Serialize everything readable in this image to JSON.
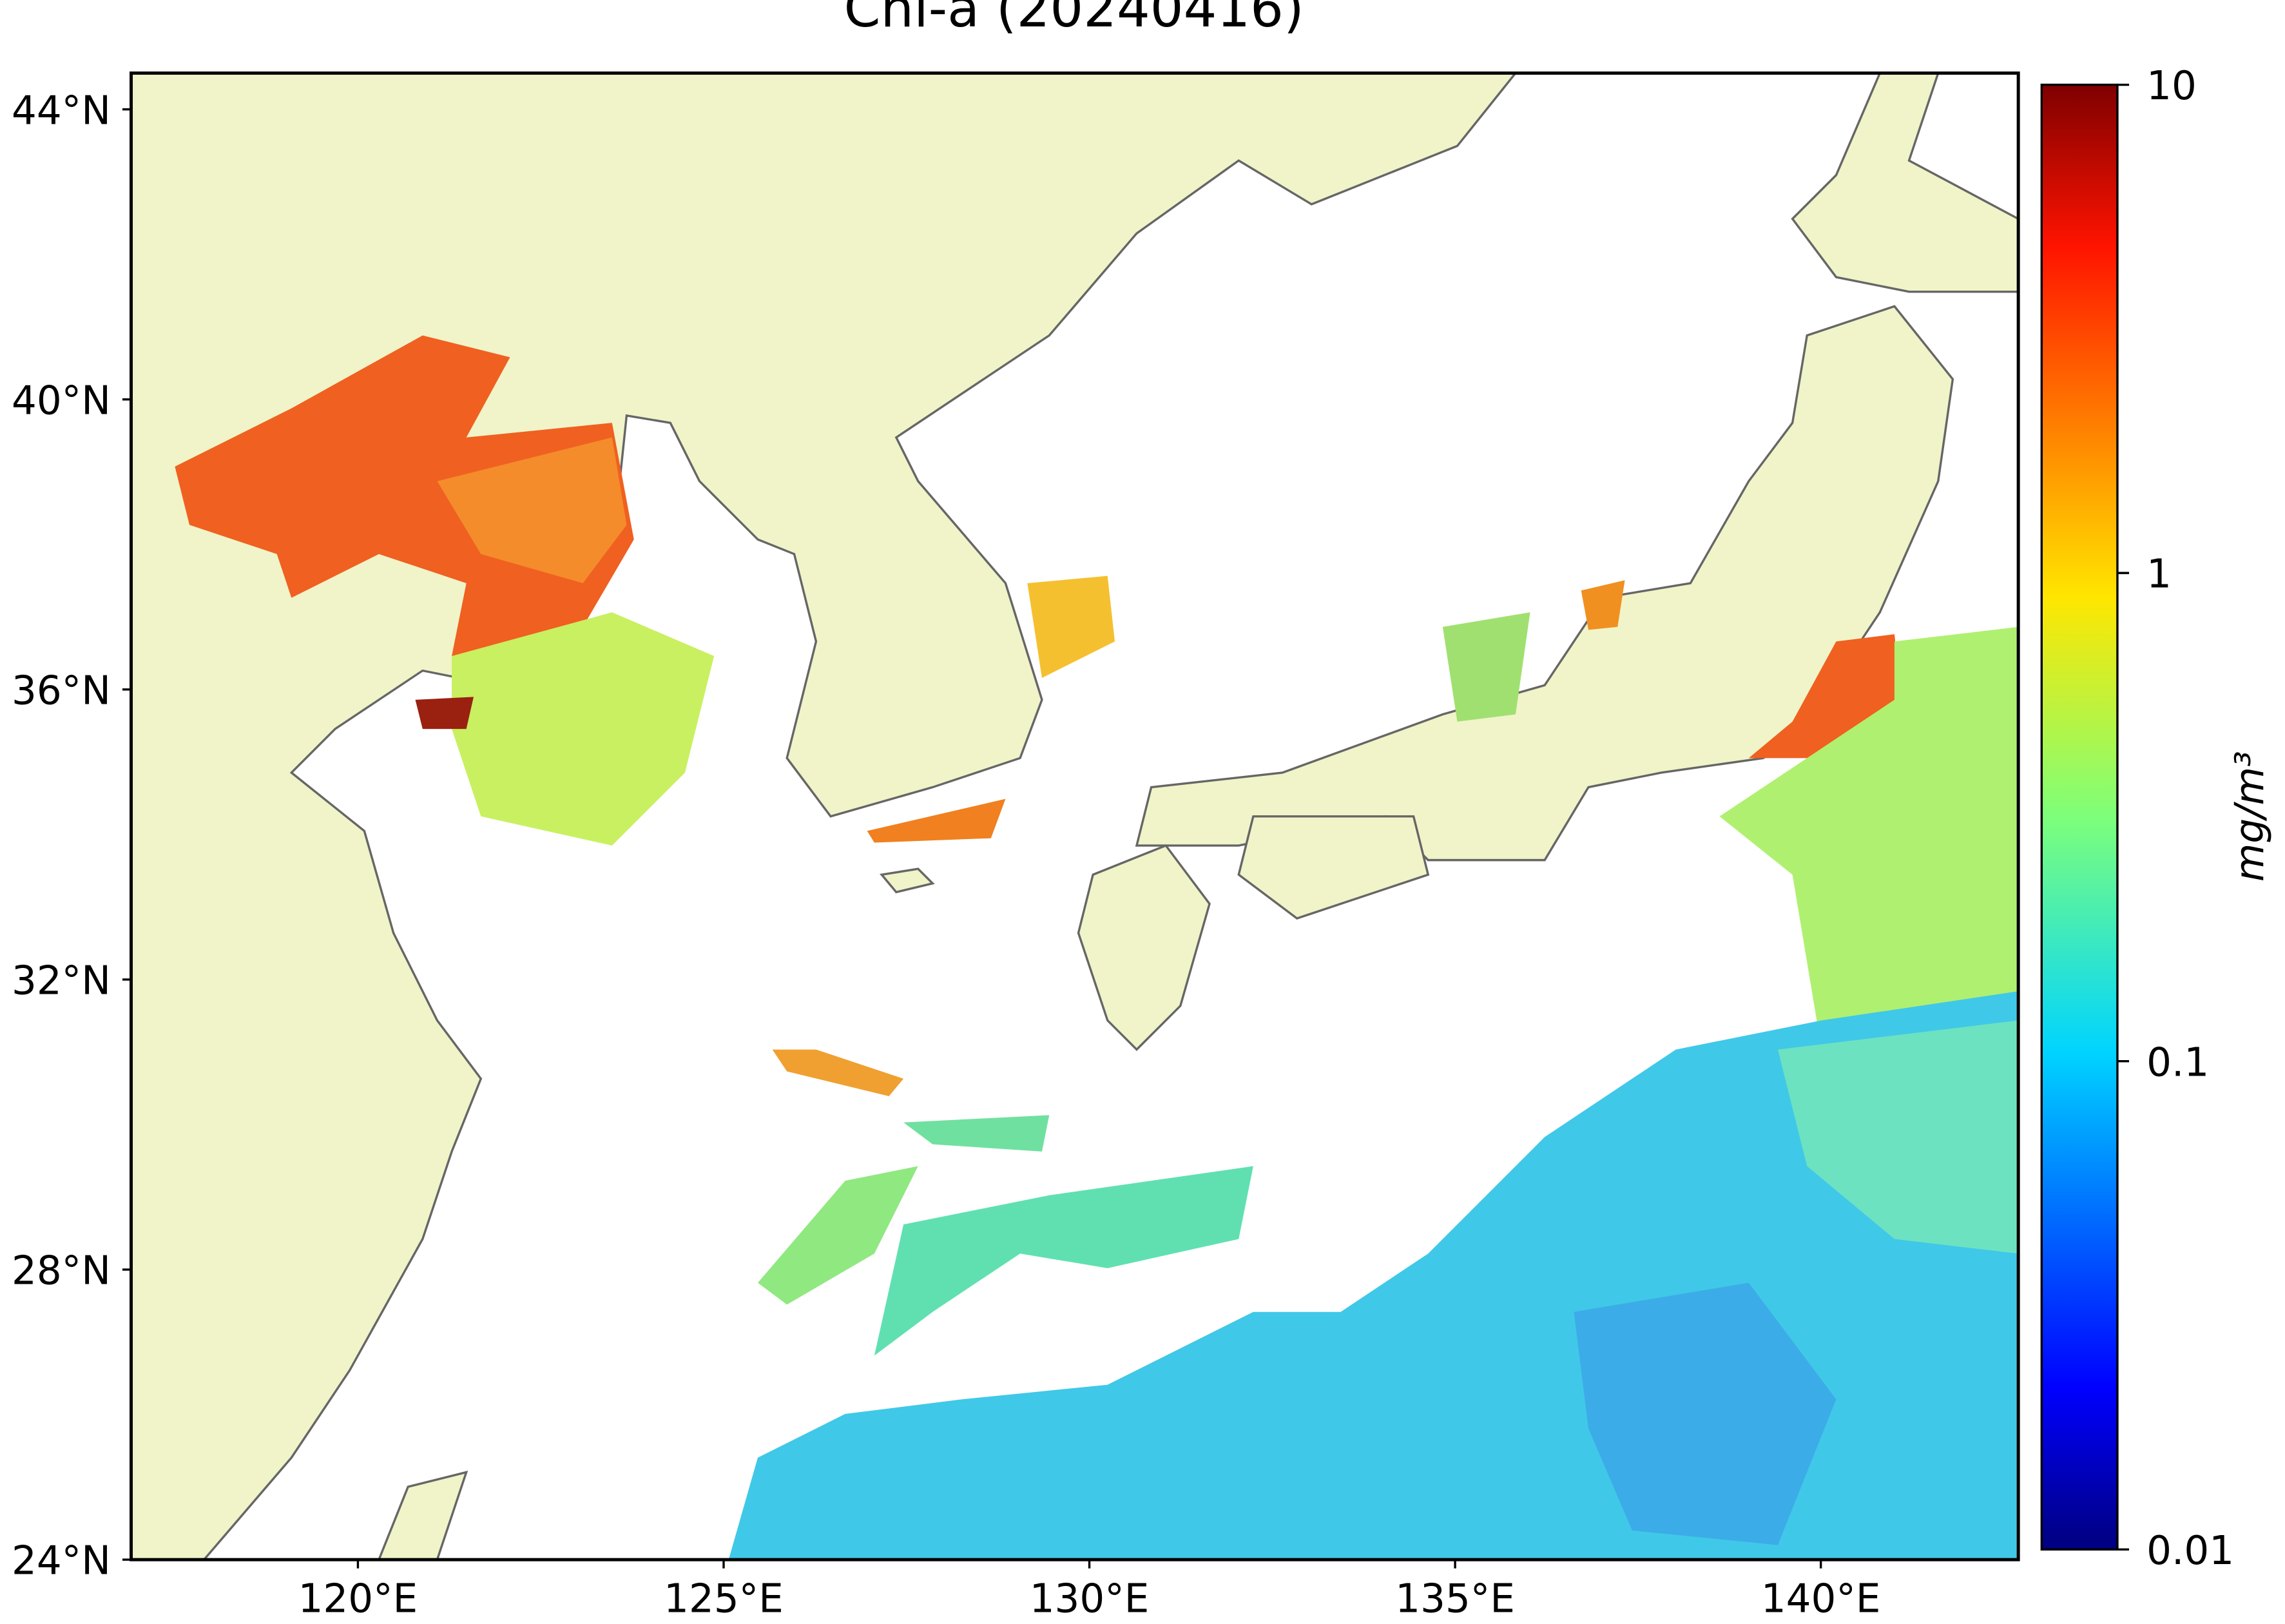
{
  "chart_data": {
    "type": "map",
    "title": "Chl-a (20240416)",
    "xlim": [
      116.9,
      142.7
    ],
    "ylim": [
      24,
      44.5
    ],
    "xticks": [
      {
        "value": 120,
        "label": "120°E"
      },
      {
        "value": 125,
        "label": "125°E"
      },
      {
        "value": 130,
        "label": "130°E"
      },
      {
        "value": 135,
        "label": "135°E"
      },
      {
        "value": 140,
        "label": "140°E"
      }
    ],
    "yticks": [
      {
        "value": 24,
        "label": "24°N"
      },
      {
        "value": 28,
        "label": "28°N"
      },
      {
        "value": 32,
        "label": "32°N"
      },
      {
        "value": 36,
        "label": "36°N"
      },
      {
        "value": 40,
        "label": "40°N"
      },
      {
        "value": 44,
        "label": "44°N"
      }
    ],
    "colorbar": {
      "label": "mg/m³",
      "scale": "log",
      "lim": [
        0.01,
        10
      ],
      "ticks": [
        0.01,
        0.1,
        1,
        10
      ]
    }
  }
}
